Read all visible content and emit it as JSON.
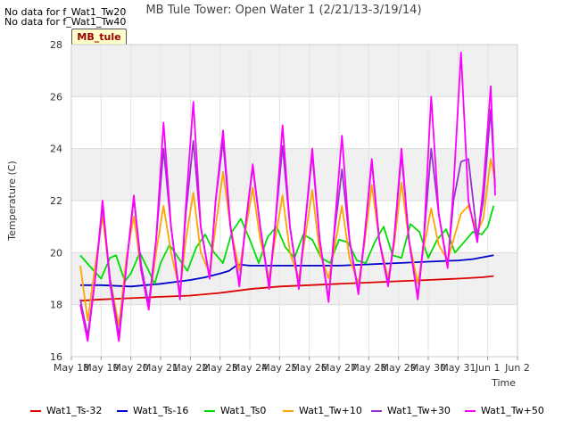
{
  "notes": [
    "No data for f_Wat1_Tw20",
    "No data for f_Wat1_Tw40"
  ],
  "badge": "MB_tule",
  "chart_data": {
    "type": "line",
    "title": "MB Tule Tower: Open Water 1 (2/21/13-3/19/14)",
    "xlabel": "Time",
    "ylabel": "Temperature (C)",
    "ylim": [
      16,
      28
    ],
    "yticks": [
      16,
      18,
      20,
      22,
      24,
      26,
      28
    ],
    "xlim": [
      18,
      33
    ],
    "xtick_values": [
      18,
      19,
      20,
      21,
      22,
      23,
      24,
      25,
      26,
      27,
      28,
      29,
      30,
      31,
      32,
      33
    ],
    "xtick_labels": [
      "May 18",
      "May 19",
      "May 20",
      "May 21",
      "May 22",
      "May 23",
      "May 24",
      "May 25",
      "May 26",
      "May 27",
      "May 28",
      "May 29",
      "May 30",
      "May 31",
      "Jun 1",
      "Jun 2"
    ],
    "grid": true,
    "legend": "bottom",
    "series": [
      {
        "name": "Wat1_Ts-32",
        "color": "#dd0000",
        "x": [
          18.3,
          19,
          20,
          21,
          22,
          23,
          24,
          25,
          26,
          27,
          28,
          29,
          30,
          31,
          31.8,
          32.2
        ],
        "y": [
          18.15,
          18.2,
          18.25,
          18.3,
          18.35,
          18.45,
          18.6,
          18.7,
          18.75,
          18.8,
          18.85,
          18.9,
          18.95,
          19.0,
          19.05,
          19.1
        ]
      },
      {
        "name": "Wat1_Ts-16",
        "color": "#0000cc",
        "x": [
          18.3,
          19,
          20,
          20.5,
          21,
          22,
          22.5,
          23,
          23.3,
          23.6,
          24,
          25,
          26,
          27,
          28,
          29,
          30,
          31,
          31.5,
          32.2
        ],
        "y": [
          18.75,
          18.75,
          18.7,
          18.75,
          18.8,
          18.95,
          19.05,
          19.2,
          19.3,
          19.55,
          19.5,
          19.5,
          19.5,
          19.5,
          19.55,
          19.6,
          19.65,
          19.7,
          19.75,
          19.9
        ]
      },
      {
        "name": "Wat1_Ts0",
        "color": "#00dd00",
        "x": [
          18.3,
          18.6,
          19.0,
          19.3,
          19.5,
          19.8,
          20.0,
          20.3,
          20.6,
          20.8,
          21.0,
          21.3,
          21.6,
          21.9,
          22.2,
          22.5,
          22.8,
          23.1,
          23.4,
          23.7,
          24.0,
          24.3,
          24.6,
          24.9,
          25.2,
          25.5,
          25.8,
          26.1,
          26.4,
          26.7,
          27.0,
          27.3,
          27.6,
          27.9,
          28.2,
          28.5,
          28.8,
          29.1,
          29.4,
          29.7,
          30.0,
          30.3,
          30.6,
          30.9,
          31.2,
          31.5,
          31.8,
          32.0,
          32.2
        ],
        "y": [
          19.9,
          19.5,
          19.0,
          19.8,
          19.9,
          18.9,
          19.2,
          20.0,
          19.3,
          18.8,
          19.6,
          20.3,
          19.8,
          19.3,
          20.2,
          20.7,
          20.0,
          19.6,
          20.8,
          21.3,
          20.5,
          19.6,
          20.6,
          21.0,
          20.2,
          19.8,
          20.7,
          20.5,
          19.8,
          19.6,
          20.5,
          20.4,
          19.7,
          19.6,
          20.4,
          21.0,
          19.9,
          19.8,
          21.1,
          20.8,
          19.8,
          20.5,
          20.9,
          20.0,
          20.4,
          20.8,
          20.7,
          21.0,
          21.8
        ]
      },
      {
        "name": "Wat1_Tw+10",
        "color": "#ffa500",
        "x": [
          18.3,
          18.55,
          18.8,
          19.05,
          19.3,
          19.6,
          19.85,
          20.1,
          20.35,
          20.6,
          20.85,
          21.1,
          21.35,
          21.65,
          21.85,
          22.1,
          22.35,
          22.65,
          22.85,
          23.1,
          23.35,
          23.65,
          23.85,
          24.1,
          24.35,
          24.65,
          24.85,
          25.1,
          25.35,
          25.65,
          25.85,
          26.1,
          26.35,
          26.65,
          26.85,
          27.1,
          27.35,
          27.65,
          27.85,
          28.1,
          28.35,
          28.65,
          28.85,
          29.1,
          29.35,
          29.65,
          29.85,
          30.1,
          30.35,
          30.65,
          30.85,
          31.1,
          31.35,
          31.65,
          31.85,
          32.1,
          32.25
        ],
        "y": [
          19.5,
          17.4,
          19.5,
          21.4,
          19.0,
          17.2,
          19.8,
          21.4,
          19.3,
          18.0,
          20.0,
          21.8,
          20.0,
          18.5,
          20.5,
          22.3,
          20.0,
          19.2,
          21.0,
          23.1,
          21.0,
          19.3,
          20.8,
          22.5,
          20.5,
          19.0,
          20.5,
          22.2,
          20.0,
          19.0,
          20.5,
          22.4,
          20.0,
          19.0,
          20.2,
          21.8,
          19.8,
          18.8,
          20.3,
          22.6,
          20.5,
          19.0,
          20.3,
          22.7,
          20.5,
          18.8,
          20.2,
          21.7,
          20.3,
          19.7,
          20.5,
          21.5,
          21.8,
          20.8,
          21.3,
          23.6,
          22.8
        ]
      },
      {
        "name": "Wat1_Tw+30",
        "color": "#9932cc",
        "x": [
          18.3,
          18.55,
          18.8,
          19.05,
          19.3,
          19.6,
          19.85,
          20.1,
          20.35,
          20.6,
          20.85,
          21.1,
          21.35,
          21.65,
          21.85,
          22.1,
          22.35,
          22.65,
          22.85,
          23.1,
          23.35,
          23.65,
          23.85,
          24.1,
          24.35,
          24.65,
          24.85,
          25.1,
          25.35,
          25.65,
          25.85,
          26.1,
          26.35,
          26.65,
          26.85,
          27.1,
          27.35,
          27.65,
          27.85,
          28.1,
          28.35,
          28.65,
          28.85,
          29.1,
          29.35,
          29.65,
          29.85,
          30.1,
          30.35,
          30.65,
          30.85,
          31.1,
          31.35,
          31.65,
          31.85,
          32.1,
          32.25
        ],
        "y": [
          18.2,
          16.8,
          19.0,
          21.8,
          19.0,
          16.8,
          19.5,
          22.1,
          19.5,
          18.0,
          20.5,
          24.0,
          21.0,
          18.3,
          21.5,
          24.3,
          21.0,
          19.0,
          22.0,
          24.3,
          21.0,
          18.8,
          21.0,
          23.3,
          21.0,
          18.7,
          21.0,
          24.1,
          21.0,
          18.7,
          21.0,
          23.8,
          20.5,
          18.2,
          20.8,
          23.2,
          20.5,
          18.5,
          20.5,
          23.5,
          20.5,
          18.8,
          20.5,
          23.8,
          20.5,
          18.3,
          20.5,
          24.0,
          21.5,
          19.5,
          22.0,
          23.5,
          23.6,
          20.6,
          22.0,
          25.5,
          22.5
        ]
      },
      {
        "name": "Wat1_Tw+50",
        "color": "#ff00ff",
        "x": [
          18.3,
          18.55,
          18.8,
          19.05,
          19.3,
          19.6,
          19.85,
          20.1,
          20.35,
          20.6,
          20.85,
          21.1,
          21.35,
          21.65,
          21.85,
          22.1,
          22.35,
          22.65,
          22.85,
          23.1,
          23.35,
          23.65,
          23.85,
          24.1,
          24.35,
          24.65,
          24.85,
          25.1,
          25.35,
          25.65,
          25.85,
          26.1,
          26.35,
          26.65,
          26.85,
          27.1,
          27.35,
          27.65,
          27.85,
          28.1,
          28.35,
          28.65,
          28.85,
          29.1,
          29.35,
          29.65,
          29.85,
          30.1,
          30.35,
          30.65,
          30.85,
          31.1,
          31.35,
          31.65,
          31.85,
          32.1,
          32.25
        ],
        "y": [
          18.0,
          16.6,
          19.0,
          22.0,
          18.8,
          16.6,
          19.5,
          22.2,
          19.3,
          17.8,
          20.5,
          25.0,
          21.0,
          18.2,
          21.8,
          25.8,
          21.0,
          19.0,
          22.0,
          24.7,
          21.0,
          18.7,
          21.0,
          23.4,
          21.0,
          18.6,
          21.0,
          24.9,
          21.0,
          18.6,
          21.0,
          24.0,
          20.5,
          18.1,
          21.0,
          24.5,
          20.5,
          18.4,
          20.5,
          23.6,
          20.5,
          18.7,
          20.5,
          24.0,
          20.5,
          18.2,
          20.5,
          26.0,
          21.5,
          19.4,
          22.5,
          27.7,
          22.0,
          20.4,
          22.5,
          26.4,
          22.2
        ]
      }
    ]
  }
}
